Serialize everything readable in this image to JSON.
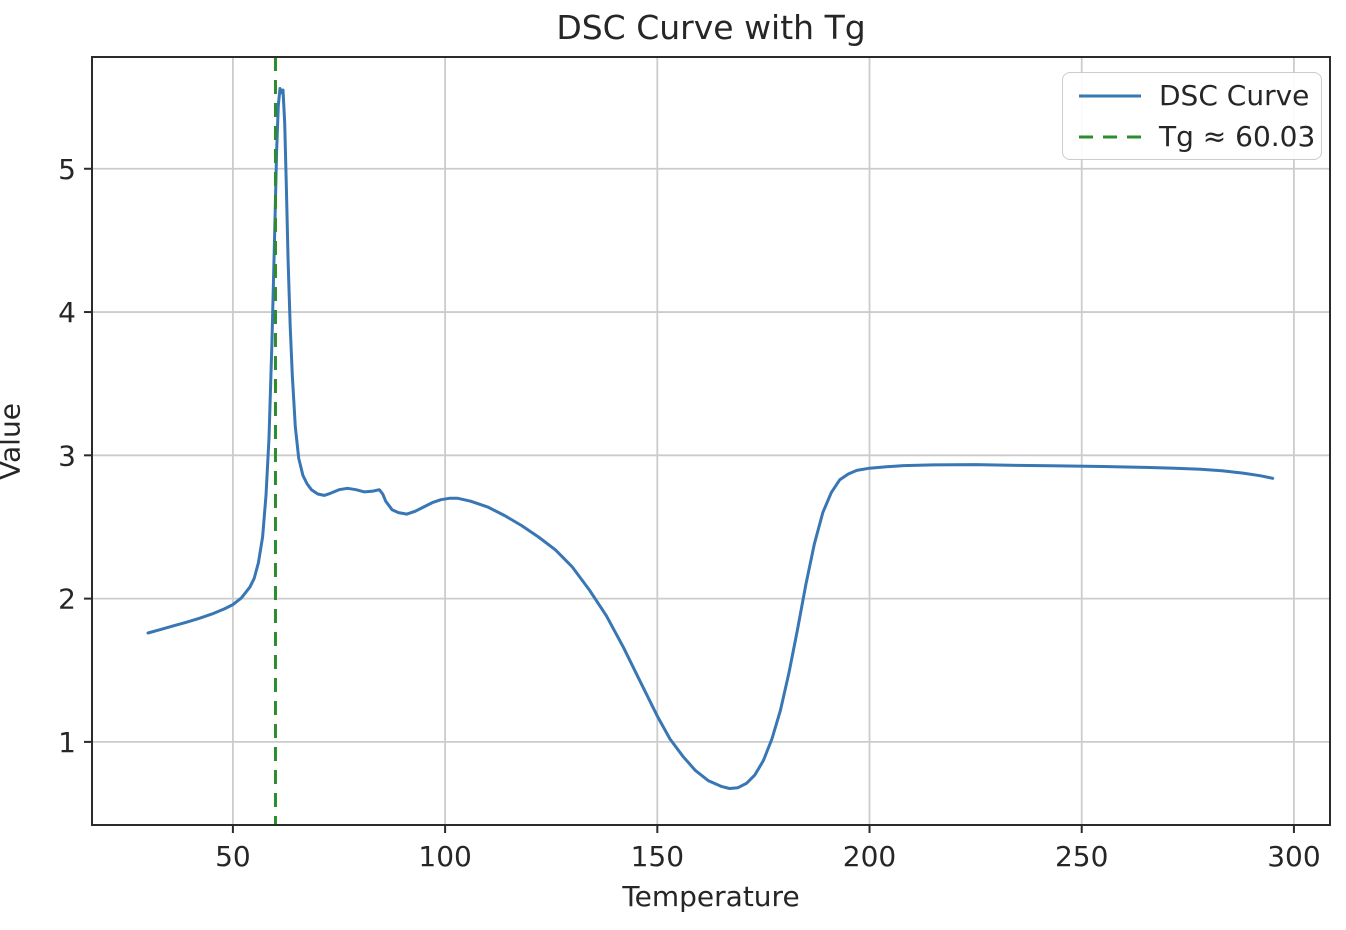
{
  "figure": {
    "title": "DSC Curve with Tg",
    "x_axis": {
      "label": "Temperature",
      "tick_labels": [
        "50",
        "100",
        "150",
        "200",
        "250",
        "300"
      ]
    },
    "y_axis": {
      "label": "Value",
      "tick_labels": [
        "1",
        "2",
        "3",
        "4",
        "5"
      ]
    },
    "legend": {
      "items": [
        {
          "label": "DSC Curve",
          "line_style": "solid",
          "color": "#3876b4"
        },
        {
          "label": "Tg ≈ 60.03",
          "line_style": "dashed",
          "color": "#2e8b2e"
        }
      ]
    }
  },
  "chart_data": {
    "type": "line",
    "title": "DSC Curve with Tg",
    "xlabel": "Temperature",
    "ylabel": "Value",
    "xlim": [
      16.8,
      308.5
    ],
    "ylim": [
      0.42,
      5.78
    ],
    "x_ticks": [
      50,
      100,
      150,
      200,
      250,
      300
    ],
    "y_ticks": [
      1,
      2,
      3,
      4,
      5
    ],
    "grid": true,
    "legend_position": "upper-right",
    "series": [
      {
        "name": "DSC Curve",
        "color": "#3876b4",
        "line_style": "solid",
        "points": [
          [
            30,
            1.76
          ],
          [
            33,
            1.785
          ],
          [
            36,
            1.81
          ],
          [
            39,
            1.835
          ],
          [
            42,
            1.862
          ],
          [
            45,
            1.892
          ],
          [
            48,
            1.928
          ],
          [
            50,
            1.958
          ],
          [
            52,
            2.005
          ],
          [
            54,
            2.08
          ],
          [
            55,
            2.14
          ],
          [
            56,
            2.25
          ],
          [
            57,
            2.43
          ],
          [
            57.8,
            2.72
          ],
          [
            58.5,
            3.12
          ],
          [
            59.2,
            3.78
          ],
          [
            59.8,
            4.5
          ],
          [
            60.3,
            5.12
          ],
          [
            60.7,
            5.44
          ],
          [
            61.1,
            5.56
          ],
          [
            61.5,
            5.53
          ],
          [
            61.8,
            5.55
          ],
          [
            62.2,
            5.32
          ],
          [
            62.6,
            4.86
          ],
          [
            63,
            4.36
          ],
          [
            63.5,
            3.9
          ],
          [
            64,
            3.56
          ],
          [
            64.7,
            3.2
          ],
          [
            65.5,
            2.98
          ],
          [
            66.5,
            2.86
          ],
          [
            67.5,
            2.8
          ],
          [
            68.5,
            2.76
          ],
          [
            70,
            2.73
          ],
          [
            71.5,
            2.72
          ],
          [
            73,
            2.735
          ],
          [
            75,
            2.76
          ],
          [
            77,
            2.77
          ],
          [
            79,
            2.76
          ],
          [
            81,
            2.745
          ],
          [
            83,
            2.75
          ],
          [
            84.5,
            2.76
          ],
          [
            85.3,
            2.73
          ],
          [
            86,
            2.68
          ],
          [
            87.5,
            2.62
          ],
          [
            89,
            2.6
          ],
          [
            91,
            2.59
          ],
          [
            93,
            2.61
          ],
          [
            95,
            2.64
          ],
          [
            97,
            2.67
          ],
          [
            99,
            2.69
          ],
          [
            101,
            2.7
          ],
          [
            103,
            2.7
          ],
          [
            106,
            2.68
          ],
          [
            110,
            2.64
          ],
          [
            114,
            2.58
          ],
          [
            118,
            2.51
          ],
          [
            122,
            2.43
          ],
          [
            126,
            2.34
          ],
          [
            130,
            2.22
          ],
          [
            134,
            2.06
          ],
          [
            138,
            1.88
          ],
          [
            142,
            1.66
          ],
          [
            146,
            1.42
          ],
          [
            150,
            1.18
          ],
          [
            153,
            1.02
          ],
          [
            156,
            0.9
          ],
          [
            159,
            0.8
          ],
          [
            162,
            0.73
          ],
          [
            165,
            0.69
          ],
          [
            167,
            0.675
          ],
          [
            169,
            0.68
          ],
          [
            171,
            0.71
          ],
          [
            173,
            0.77
          ],
          [
            175,
            0.87
          ],
          [
            177,
            1.02
          ],
          [
            179,
            1.22
          ],
          [
            181,
            1.48
          ],
          [
            183,
            1.78
          ],
          [
            185,
            2.1
          ],
          [
            187,
            2.38
          ],
          [
            189,
            2.6
          ],
          [
            191,
            2.74
          ],
          [
            193,
            2.83
          ],
          [
            195,
            2.87
          ],
          [
            197,
            2.895
          ],
          [
            200,
            2.91
          ],
          [
            204,
            2.92
          ],
          [
            208,
            2.928
          ],
          [
            215,
            2.933
          ],
          [
            225,
            2.935
          ],
          [
            235,
            2.93
          ],
          [
            245,
            2.926
          ],
          [
            255,
            2.922
          ],
          [
            265,
            2.916
          ],
          [
            272,
            2.91
          ],
          [
            278,
            2.903
          ],
          [
            283,
            2.893
          ],
          [
            288,
            2.876
          ],
          [
            292,
            2.858
          ],
          [
            295,
            2.84
          ]
        ]
      }
    ],
    "annotations": [
      {
        "type": "vline",
        "x": 60.03,
        "label": "Tg ≈ 60.03",
        "color": "#2e8b2e",
        "line_style": "dashed"
      }
    ],
    "styles": {
      "grid_color": "#cccccc",
      "spine_color": "#2b2b2b",
      "tick_color": "#2b2b2b",
      "text_color": "#262626",
      "background": "#ffffff"
    }
  }
}
